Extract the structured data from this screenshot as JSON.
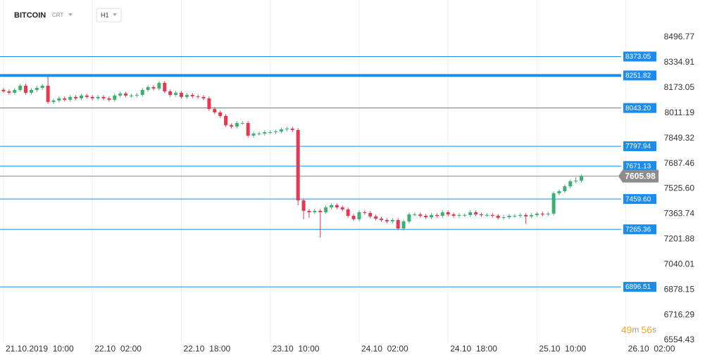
{
  "chart_data": {
    "type": "candlestick",
    "title": "BITCOIN",
    "instrument_type": "CRT",
    "interval": "H1",
    "xlim": [
      -0.63,
      110.9
    ],
    "xticks": [
      {
        "value": 0,
        "label": "21.10.2019  10:00"
      },
      {
        "value": 16,
        "label": "22.10  02:00"
      },
      {
        "value": 32,
        "label": "22.10  18:00"
      },
      {
        "value": 48,
        "label": "23.10  10:00"
      },
      {
        "value": 64,
        "label": "24.10  02:00"
      },
      {
        "value": 80,
        "label": "24.10  18:00"
      },
      {
        "value": 96,
        "label": "25.10  10:00"
      },
      {
        "value": 112,
        "label": "26.10  02:00"
      }
    ],
    "xgrid": true,
    "ylim": [
      6536.4,
      8735.6
    ],
    "yticks": [
      8496.77,
      8334.91,
      8173.05,
      8011.19,
      7849.32,
      7687.46,
      {
        "value": 7525.6,
        "label": "7525.60"
      },
      7363.74,
      7201.88,
      7040.01,
      6878.15,
      6716.29,
      6554.43
    ],
    "up_color": "#3bb273",
    "down_color": "#e8384f",
    "open": [
      8160,
      8150,
      8141,
      8159,
      8186,
      8141,
      8159,
      8172,
      8186,
      8082,
      8091,
      8105,
      8096,
      8114,
      8105,
      8123,
      8114,
      8105,
      8114,
      8105,
      8096,
      8123,
      8136,
      8123,
      8123,
      8127,
      8159,
      8177,
      8168,
      8204,
      8150,
      8127,
      8141,
      8114,
      8127,
      8118,
      8114,
      8105,
      8037,
      8015,
      7992,
      7933,
      7924,
      7947,
      7947,
      7866,
      7879,
      7879,
      7888,
      7888,
      7893,
      7906,
      7911,
      7902,
      7451,
      7384,
      7375,
      7384,
      7375,
      7406,
      7420,
      7406,
      7393,
      7352,
      7330,
      7375,
      7370,
      7348,
      7334,
      7325,
      7316,
      7325,
      7271,
      7316,
      7361,
      7361,
      7352,
      7343,
      7357,
      7352,
      7375,
      7361,
      7352,
      7357,
      7357,
      7375,
      7361,
      7357,
      7357,
      7352,
      7339,
      7343,
      7352,
      7352,
      7357,
      7348,
      7357,
      7366,
      7361,
      7366,
      7496,
      7510,
      7541,
      7573,
      7577
    ],
    "high": [
      8172,
      8162,
      8171,
      8198,
      8198,
      8171,
      8184,
      8198,
      8249,
      8103,
      8117,
      8117,
      8126,
      8126,
      8135,
      8135,
      8126,
      8126,
      8126,
      8117,
      8135,
      8148,
      8148,
      8135,
      8139,
      8171,
      8189,
      8189,
      8216,
      8216,
      8162,
      8153,
      8153,
      8139,
      8139,
      8130,
      8126,
      8117,
      8049,
      8027,
      8004,
      7945,
      7959,
      7959,
      7959,
      7891,
      7891,
      7900,
      7900,
      7905,
      7918,
      7923,
      7923,
      7914,
      7463,
      7396,
      7396,
      7396,
      7418,
      7432,
      7432,
      7418,
      7405,
      7364,
      7387,
      7387,
      7382,
      7360,
      7346,
      7337,
      7337,
      7337,
      7328,
      7373,
      7373,
      7373,
      7364,
      7369,
      7369,
      7387,
      7387,
      7373,
      7369,
      7369,
      7387,
      7387,
      7373,
      7369,
      7369,
      7364,
      7355,
      7364,
      7364,
      7369,
      7369,
      7369,
      7378,
      7378,
      7378,
      7508,
      7522,
      7553,
      7585,
      7600,
      7618
    ],
    "low": [
      8138,
      8129,
      8129,
      8147,
      8129,
      8129,
      8147,
      8160,
      8070,
      8070,
      8079,
      8084,
      8084,
      8093,
      8093,
      8102,
      8093,
      8093,
      8093,
      8084,
      8084,
      8111,
      8111,
      8111,
      8111,
      8115,
      8147,
      8156,
      8156,
      8138,
      8115,
      8115,
      8102,
      8102,
      8106,
      8102,
      8093,
      8025,
      8003,
      7980,
      7921,
      7912,
      7912,
      7935,
      7854,
      7854,
      7867,
      7867,
      7876,
      7876,
      7881,
      7894,
      7890,
      7420,
      7330,
      7340,
      7363,
      7212,
      7363,
      7394,
      7394,
      7381,
      7340,
      7318,
      7318,
      7358,
      7336,
      7322,
      7313,
      7304,
      7304,
      7259,
      7259,
      7304,
      7349,
      7340,
      7331,
      7331,
      7340,
      7340,
      7349,
      7340,
      7340,
      7345,
      7345,
      7349,
      7345,
      7345,
      7340,
      7327,
      7327,
      7331,
      7340,
      7340,
      7300,
      7336,
      7345,
      7349,
      7349,
      7354,
      7484,
      7498,
      7529,
      7561,
      7565
    ],
    "close": [
      8150,
      8141,
      8159,
      8186,
      8141,
      8159,
      8172,
      8186,
      8082,
      8091,
      8105,
      8096,
      8114,
      8105,
      8123,
      8114,
      8105,
      8114,
      8105,
      8096,
      8123,
      8136,
      8123,
      8123,
      8127,
      8159,
      8177,
      8168,
      8204,
      8150,
      8127,
      8141,
      8114,
      8127,
      8118,
      8114,
      8105,
      8037,
      8015,
      7992,
      7933,
      7924,
      7947,
      7947,
      7866,
      7879,
      7879,
      7888,
      7888,
      7893,
      7906,
      7911,
      7902,
      7451,
      7384,
      7375,
      7384,
      7375,
      7406,
      7420,
      7406,
      7393,
      7352,
      7330,
      7375,
      7370,
      7348,
      7334,
      7325,
      7316,
      7325,
      7271,
      7316,
      7361,
      7361,
      7352,
      7343,
      7357,
      7352,
      7375,
      7361,
      7352,
      7357,
      7357,
      7375,
      7361,
      7357,
      7357,
      7352,
      7339,
      7343,
      7352,
      7352,
      7357,
      7348,
      7357,
      7366,
      7361,
      7366,
      7496,
      7510,
      7541,
      7573,
      7577,
      7605.98
    ],
    "level_color": "#1a8cf0",
    "levels": [
      {
        "value": 8373.05
      },
      {
        "value": 8251.82,
        "style": "thick"
      },
      {
        "value": 8043.2,
        "label": "8043.20"
      },
      {
        "value": 7797.94
      },
      {
        "value": 7671.13
      },
      {
        "value": 7459.6,
        "label": "7459.60"
      },
      {
        "value": 7265.36
      },
      {
        "value": 6896.51
      }
    ],
    "current_price": 7605.98,
    "current_price_color": "#8c8c8c",
    "countdown": [
      "49",
      "m",
      "56",
      "s"
    ]
  }
}
